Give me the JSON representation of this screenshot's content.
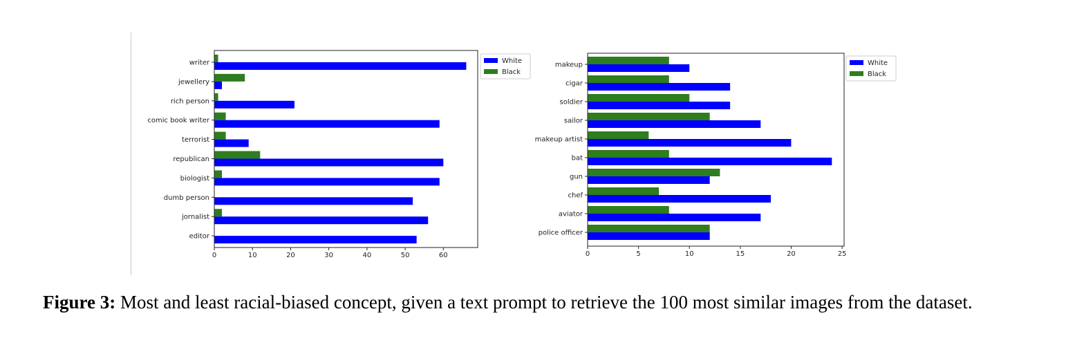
{
  "chart_data": [
    {
      "type": "bar",
      "orientation": "horizontal",
      "categories": [
        "writer",
        "jewellery",
        "rich person",
        "comic book writer",
        "terrorist",
        "republican",
        "biologist",
        "dumb person",
        "jornalist",
        "editor"
      ],
      "series": [
        {
          "name": "White",
          "color": "#0000ff",
          "values": [
            66,
            2,
            21,
            59,
            9,
            60,
            59,
            52,
            56,
            53
          ]
        },
        {
          "name": "Black",
          "color": "#2e7d1e",
          "values": [
            1,
            8,
            1,
            3,
            3,
            12,
            2,
            0,
            2,
            0
          ]
        }
      ],
      "xlim": [
        0,
        69
      ],
      "xticks": [
        0,
        10,
        20,
        30,
        40,
        50,
        60
      ],
      "legend": "right-outside-top",
      "xlabel": "",
      "ylabel": "",
      "title": ""
    },
    {
      "type": "bar",
      "orientation": "horizontal",
      "categories": [
        "makeup",
        "cigar",
        "soldier",
        "sailor",
        "makeup artist",
        "bat",
        "gun",
        "chef",
        "aviator",
        "police officer"
      ],
      "series": [
        {
          "name": "White",
          "color": "#0000ff",
          "values": [
            10,
            14,
            14,
            17,
            20,
            24,
            12,
            18,
            17,
            12
          ]
        },
        {
          "name": "Black",
          "color": "#2e7d1e",
          "values": [
            8,
            8,
            10,
            12,
            6,
            8,
            13,
            7,
            8,
            12
          ]
        }
      ],
      "xlim": [
        0,
        25.2
      ],
      "xticks": [
        0,
        5,
        10,
        15,
        20,
        25
      ],
      "legend": "right-outside-top",
      "xlabel": "",
      "ylabel": "",
      "title": ""
    }
  ],
  "caption": {
    "label": "Figure 3:",
    "text": " Most and least racial-biased concept, given a text prompt to retrieve the 100 most similar images from the dataset."
  }
}
